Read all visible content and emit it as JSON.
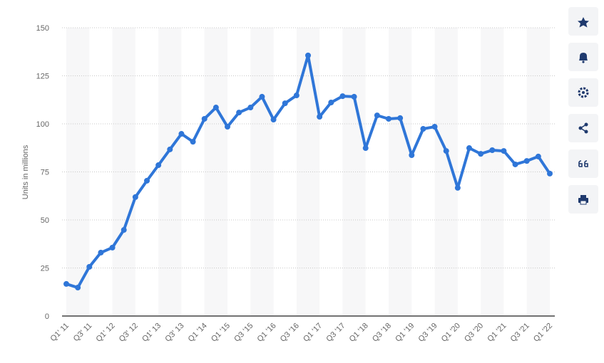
{
  "chart_data": {
    "type": "line",
    "y_label": "Units in millions",
    "categories": [
      "Q1' 11",
      null,
      "Q3' 11",
      null,
      "Q1' 12",
      null,
      "Q3' 12",
      null,
      "Q1' 13",
      null,
      "Q3' 13",
      null,
      "Q1 '14",
      null,
      "Q1 '15",
      null,
      "Q3 '15",
      null,
      "Q1 '16",
      null,
      "Q3 '16",
      null,
      "Q1 '17",
      null,
      "Q3 '17",
      null,
      "Q1 '18",
      null,
      "Q3 '18",
      null,
      "Q1 '19",
      null,
      "Q3 '19",
      null,
      "Q1 '20",
      null,
      "Q3 '20",
      null,
      "Q1 '21",
      null,
      "Q3 '21",
      null,
      "Q1 '22"
    ],
    "series": [
      {
        "name": "Units",
        "color": "#2f76d8",
        "values": [
          16.7,
          14.8,
          25.6,
          33,
          35.6,
          44.8,
          61.9,
          70.4,
          78.5,
          86.7,
          94.8,
          90.7,
          102.6,
          108.5,
          98.5,
          105.9,
          108.5,
          114.1,
          102.2,
          110.7,
          114.8,
          135.6,
          103.7,
          111.1,
          114.4,
          114.1,
          87.4,
          104.4,
          102.6,
          103,
          83.7,
          97.4,
          98.5,
          85.9,
          66.7,
          87.4,
          84.4,
          86.3,
          85.9,
          78.9,
          80.7,
          83,
          74.1
        ]
      }
    ],
    "ylim": [
      0,
      150
    ],
    "yticks": [
      0,
      25,
      50,
      75,
      100,
      125,
      150
    ],
    "grid": true
  }
}
